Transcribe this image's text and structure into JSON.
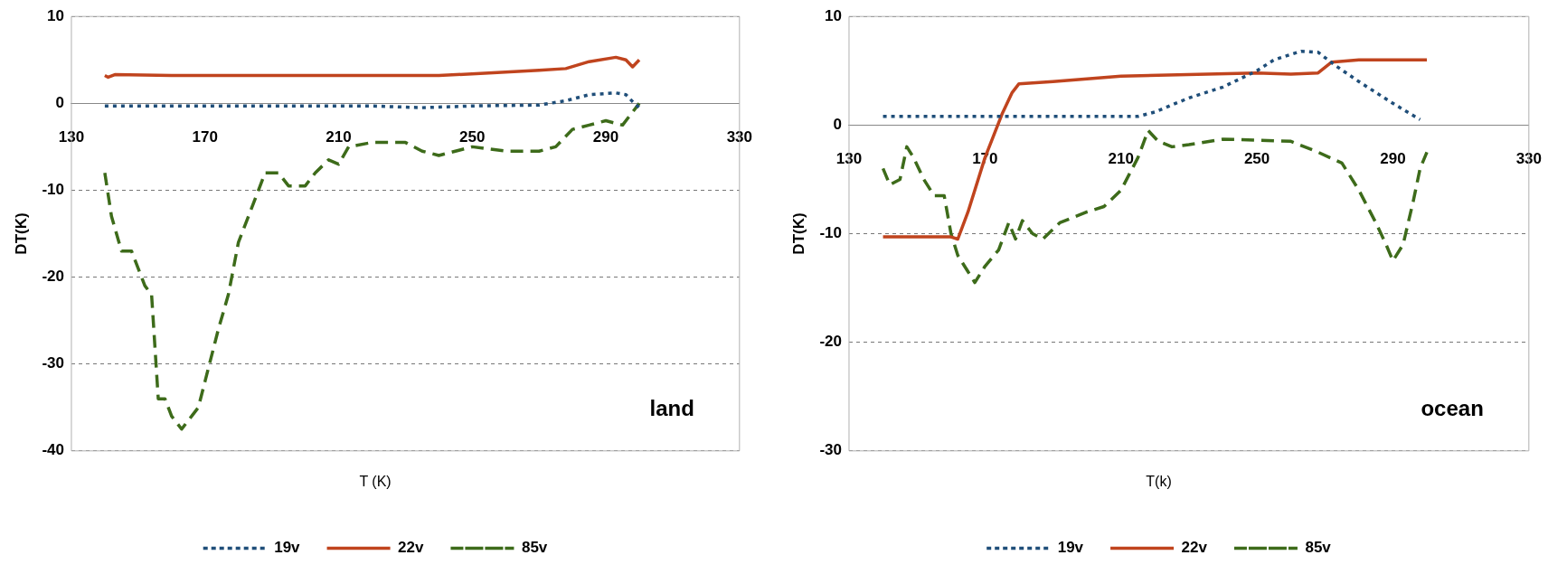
{
  "chart_data": [
    {
      "type": "line",
      "xlabel": "T (K)",
      "ylabel": "DT(K)",
      "annotations": [
        "land"
      ],
      "xlim": [
        130,
        330
      ],
      "xticks": [
        130,
        170,
        210,
        250,
        290,
        330
      ],
      "ylim": [
        -40,
        10
      ],
      "yticks": [
        -40,
        -30,
        -20,
        -10,
        0,
        10
      ],
      "grid": "y",
      "legend": "bottom",
      "marker": "none",
      "series": [
        {
          "name": "19v",
          "color": "#1f4e79",
          "line_style": "dotted",
          "x": [
            140,
            180,
            220,
            235,
            250,
            270,
            278,
            285,
            293,
            296,
            298,
            300
          ],
          "values": [
            -0.3,
            -0.3,
            -0.3,
            -0.5,
            -0.3,
            -0.2,
            0.3,
            1,
            1.2,
            1,
            0.2,
            -0.5
          ]
        },
        {
          "name": "22v",
          "color": "#c0441e",
          "line_style": "solid",
          "x": [
            140,
            141,
            143,
            160,
            180,
            200,
            220,
            240,
            255,
            270,
            278,
            285,
            293,
            296,
            298,
            300
          ],
          "values": [
            3.2,
            3,
            3.3,
            3.2,
            3.2,
            3.2,
            3.2,
            3.2,
            3.5,
            3.8,
            4,
            4.8,
            5.3,
            5,
            4.2,
            5
          ]
        },
        {
          "name": "85v",
          "color": "#3d6b1a",
          "line_style": "dashed",
          "x": [
            140,
            142,
            145,
            148,
            152,
            154,
            156,
            158,
            160,
            163,
            166,
            168,
            170,
            174,
            177,
            180,
            185,
            188,
            192,
            195,
            200,
            203,
            207,
            210,
            213,
            220,
            230,
            235,
            240,
            250,
            260,
            270,
            275,
            280,
            285,
            290,
            295,
            298,
            300
          ],
          "values": [
            -8,
            -13,
            -17,
            -17,
            -21,
            -22,
            -34,
            -34,
            -36,
            -37.5,
            -36,
            -35,
            -32,
            -26,
            -22,
            -16,
            -11,
            -8,
            -8,
            -9.5,
            -9.5,
            -8,
            -6.5,
            -7,
            -5,
            -4.5,
            -4.5,
            -5.5,
            -6,
            -5,
            -5.5,
            -5.5,
            -5,
            -3,
            -2.5,
            -2,
            -2.5,
            -1,
            0
          ]
        }
      ]
    },
    {
      "type": "line",
      "xlabel": "T(k)",
      "ylabel": "DT(K)",
      "annotations": [
        "ocean"
      ],
      "xlim": [
        130,
        330
      ],
      "xticks": [
        130,
        170,
        210,
        250,
        290,
        330
      ],
      "ylim": [
        -30,
        10
      ],
      "yticks": [
        -30,
        -20,
        -10,
        0,
        10
      ],
      "grid": "y",
      "legend": "bottom",
      "marker": "none",
      "series": [
        {
          "name": "19v",
          "color": "#1f4e79",
          "line_style": "dotted",
          "x": [
            140,
            180,
            215,
            220,
            230,
            240,
            250,
            255,
            263,
            268,
            273,
            280,
            290,
            298
          ],
          "values": [
            0.8,
            0.8,
            0.8,
            1.2,
            2.5,
            3.5,
            5,
            6,
            6.8,
            6.7,
            5.5,
            4,
            2,
            0.5
          ]
        },
        {
          "name": "22v",
          "color": "#c0441e",
          "line_style": "solid",
          "x": [
            140,
            160,
            162,
            165,
            170,
            175,
            178,
            180,
            190,
            210,
            250,
            260,
            268,
            272,
            280,
            300
          ],
          "values": [
            -10.3,
            -10.3,
            -10.5,
            -8,
            -3,
            1,
            3,
            3.8,
            4,
            4.5,
            4.8,
            4.7,
            4.8,
            5.8,
            6,
            6
          ]
        },
        {
          "name": "85v",
          "color": "#3d6b1a",
          "line_style": "dashed",
          "x": [
            140,
            142,
            145,
            147,
            149,
            152,
            155,
            158,
            160,
            162,
            165,
            167,
            170,
            174,
            177,
            179,
            181,
            184,
            187,
            192,
            200,
            205,
            210,
            215,
            218,
            221,
            225,
            230,
            240,
            260,
            268,
            275,
            280,
            285,
            288,
            290,
            293,
            296,
            298,
            300
          ],
          "values": [
            -4,
            -5.5,
            -5,
            -2,
            -3,
            -5,
            -6.5,
            -6.5,
            -10,
            -12,
            -13.5,
            -14.5,
            -13,
            -11.5,
            -9,
            -10.5,
            -8.8,
            -10,
            -10.5,
            -9,
            -8,
            -7.5,
            -6,
            -3,
            -0.5,
            -1.5,
            -2,
            -1.8,
            -1.3,
            -1.5,
            -2.5,
            -3.5,
            -6,
            -9,
            -11,
            -12.5,
            -11,
            -7,
            -4,
            -2.5
          ]
        }
      ]
    }
  ]
}
